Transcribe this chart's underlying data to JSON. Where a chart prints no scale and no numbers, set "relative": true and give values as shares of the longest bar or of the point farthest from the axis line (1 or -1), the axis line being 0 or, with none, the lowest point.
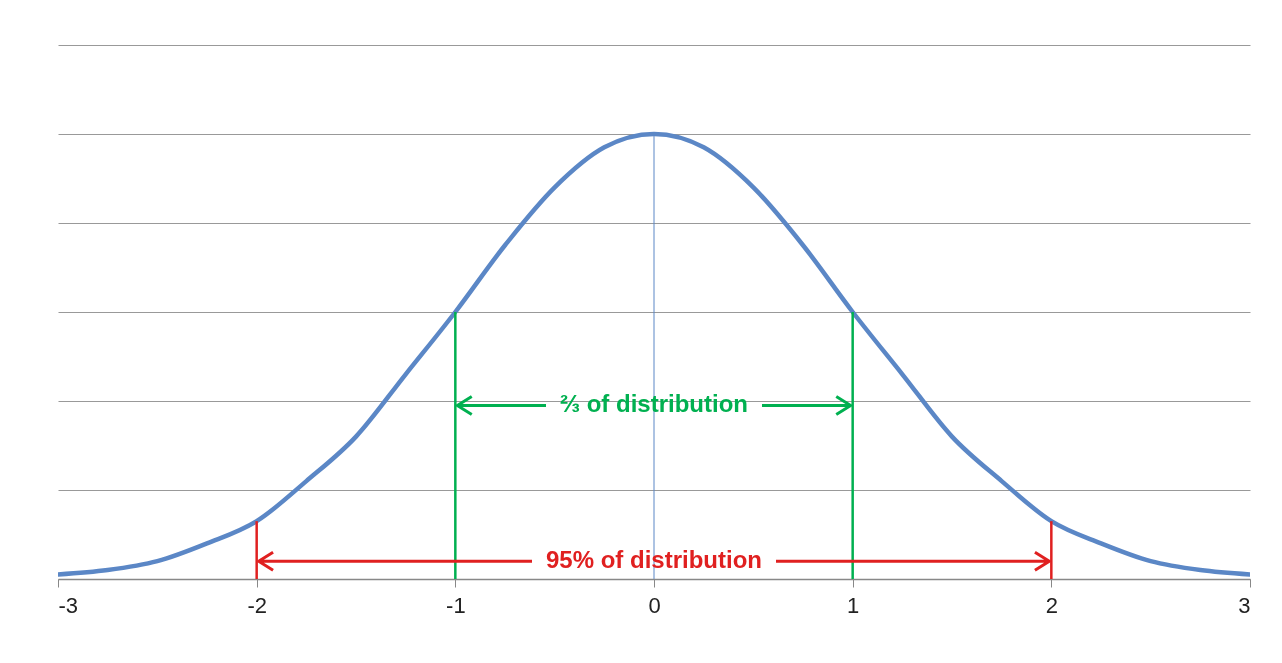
{
  "chart_data": {
    "type": "line",
    "relative": true,
    "x": [
      -3,
      -2.75,
      -2.5,
      -2.25,
      -2,
      -1.75,
      -1.5,
      -1.25,
      -1,
      -0.75,
      -0.5,
      -0.25,
      0,
      0.25,
      0.5,
      0.75,
      1,
      1.25,
      1.5,
      1.75,
      2,
      2.25,
      2.5,
      2.75,
      3
    ],
    "series": [
      {
        "color": "#5b87c6",
        "values": [
          0.01,
          0.02,
          0.04,
          0.08,
          0.13,
          0.22,
          0.32,
          0.46,
          0.6,
          0.75,
          0.88,
          0.97,
          1,
          0.97,
          0.88,
          0.75,
          0.6,
          0.46,
          0.32,
          0.22,
          0.13,
          0.08,
          0.04,
          0.02,
          0.01
        ]
      }
    ],
    "xlim": [
      -3,
      3
    ],
    "xticks": [
      -3,
      -2,
      -1,
      0,
      1,
      2,
      3
    ],
    "grid": "y",
    "tick_labels": "x",
    "ref_lines": [
      {
        "axis": "x",
        "value": 0,
        "color": "#5b87c6"
      },
      {
        "axis": "x",
        "value": -1,
        "color": "#00b050"
      },
      {
        "axis": "x",
        "value": 1,
        "color": "#00b050"
      },
      {
        "axis": "x",
        "value": -2,
        "color": "#e02020"
      },
      {
        "axis": "x",
        "value": 2,
        "color": "#e02020"
      }
    ],
    "annotations": [
      {
        "text": "⅔ of distribution",
        "x": 0,
        "y": 0.39
      },
      {
        "text": "95% of distribution",
        "x": 0,
        "y": 0.04
      }
    ]
  }
}
